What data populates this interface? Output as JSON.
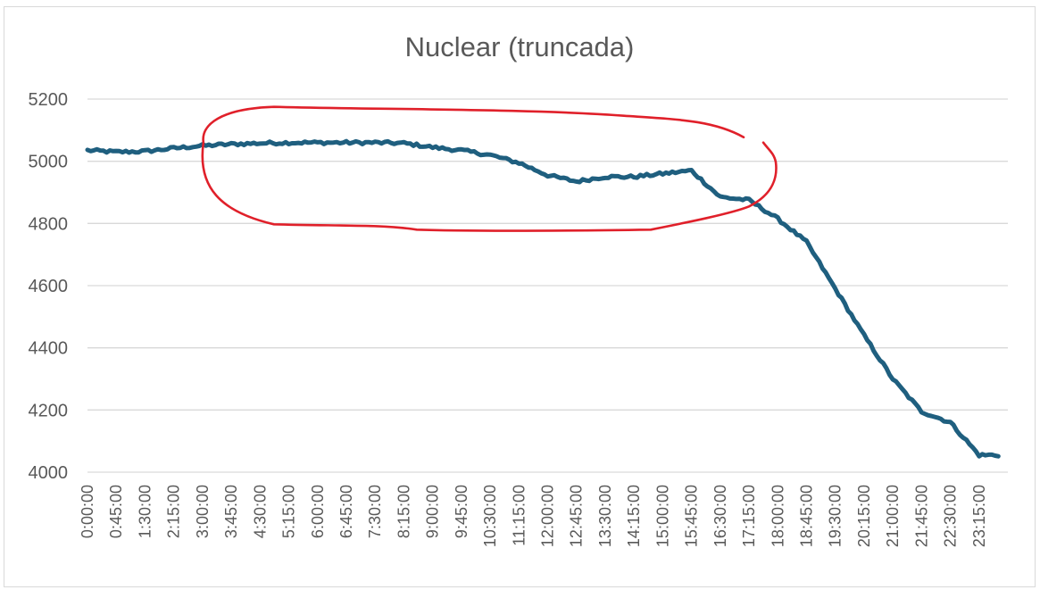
{
  "chart_data": {
    "type": "line",
    "title": "Nuclear (truncada)",
    "xlabel": "",
    "ylabel": "",
    "ylim": [
      4000,
      5200
    ],
    "y_ticks": [
      4000,
      4200,
      4400,
      4600,
      4800,
      5000,
      5200
    ],
    "x_tick_labels": [
      "0:00:00",
      "0:45:00",
      "1:30:00",
      "2:15:00",
      "3:00:00",
      "3:45:00",
      "4:30:00",
      "5:15:00",
      "6:00:00",
      "6:45:00",
      "7:30:00",
      "8:15:00",
      "9:00:00",
      "9:45:00",
      "10:30:00",
      "11:15:00",
      "12:00:00",
      "12:45:00",
      "13:30:00",
      "14:15:00",
      "15:00:00",
      "15:45:00",
      "16:30:00",
      "17:15:00",
      "18:00:00",
      "18:45:00",
      "19:30:00",
      "20:15:00",
      "21:00:00",
      "21:45:00",
      "22:30:00",
      "23:15:00"
    ],
    "grid": "horizontal",
    "legend": "none",
    "series": [
      {
        "color": "#1f5f7f",
        "x": [
          "0:00:00",
          "0:45:00",
          "1:30:00",
          "2:15:00",
          "3:00:00",
          "3:45:00",
          "4:30:00",
          "5:15:00",
          "6:00:00",
          "6:45:00",
          "7:30:00",
          "8:15:00",
          "9:00:00",
          "9:45:00",
          "10:30:00",
          "11:15:00",
          "12:00:00",
          "12:45:00",
          "13:30:00",
          "14:15:00",
          "15:00:00",
          "15:45:00",
          "16:30:00",
          "17:15:00",
          "18:00:00",
          "18:45:00",
          "19:30:00",
          "20:15:00",
          "21:00:00",
          "21:45:00",
          "22:30:00",
          "23:15:00",
          "23:45:00"
        ],
        "values": [
          5035,
          5030,
          5032,
          5042,
          5050,
          5055,
          5058,
          5060,
          5060,
          5060,
          5060,
          5058,
          5045,
          5035,
          5020,
          4995,
          4955,
          4935,
          4950,
          4950,
          4960,
          4970,
          4885,
          4875,
          4815,
          4740,
          4590,
          4440,
          4300,
          4195,
          4160,
          4055,
          4055
        ]
      }
    ],
    "annotations": [
      {
        "type": "freehand-ellipse",
        "color": "#e0202a",
        "encloses_x_range": [
          "3:00:00",
          "17:15:00"
        ],
        "encloses_y_range": [
          4780,
          5175
        ]
      }
    ]
  }
}
